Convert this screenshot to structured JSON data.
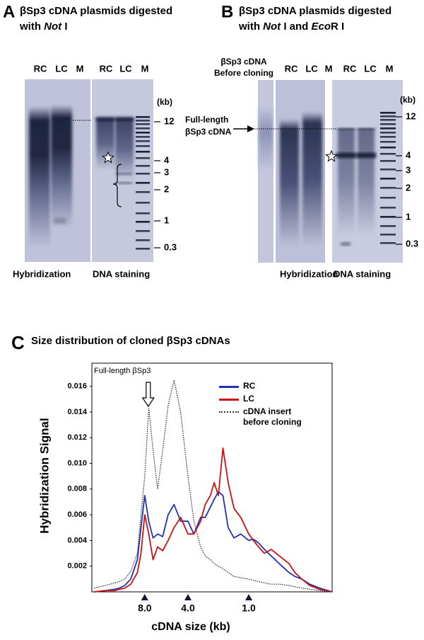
{
  "panel_a": {
    "letter": "A",
    "title_line1": "βSp3 cDNA plasmids digested",
    "title_line2": [
      "with ",
      "Not",
      " I"
    ],
    "lanes": [
      "RC",
      "LC",
      "M",
      "RC",
      "LC",
      "M"
    ],
    "size_unit": "(kb)",
    "sizes": [
      12,
      4,
      3,
      2,
      1,
      0.3
    ],
    "footer": [
      "Hybridization",
      "DNA staining"
    ]
  },
  "panel_b": {
    "letter": "B",
    "title_line1": "βSp3 cDNA plasmids digested",
    "title_line2": [
      "with ",
      "Not",
      " I and ",
      "Eco",
      "R I"
    ],
    "sample_label": [
      "βSp3 cDNA",
      "Before cloning"
    ],
    "arrow_label": [
      "Full-length",
      "βSp3 cDNA"
    ],
    "lanes": [
      "RC",
      "LC",
      "M",
      "RC",
      "LC",
      "M"
    ],
    "size_unit": "(kb)",
    "sizes": [
      12,
      4,
      3,
      2,
      1,
      0.3
    ],
    "footer": [
      "Hybridization",
      "DNA staining"
    ]
  },
  "chart_data": {
    "type": "line",
    "panel_label": "C",
    "title": "Size distribution of cloned βSp3 cDNAs",
    "x_label": "cDNA size (kb)",
    "y_label": "Hybridization Signal",
    "annotation": "Full-length βSp3",
    "x": [
      18,
      15,
      13,
      12,
      11,
      10,
      9,
      8.5,
      8,
      7.5,
      7,
      6.5,
      6,
      5.5,
      5,
      4.5,
      4,
      3.5,
      3,
      2.7,
      2.4,
      2.2,
      2,
      1.8,
      1.6,
      1.4,
      1.2,
      1,
      0.9,
      0.8,
      0.7,
      0.6,
      0.5,
      0.4,
      0.35,
      0.3,
      0.25,
      0.2,
      0.15
    ],
    "xlim": [
      18.7,
      0.15
    ],
    "xticks": [
      {
        "value": 8,
        "label": "8.0"
      },
      {
        "value": 4,
        "label": "4.0"
      },
      {
        "value": 1,
        "label": "1.0"
      }
    ],
    "ylim": [
      0,
      0.0178
    ],
    "yticks": [
      0.002,
      0.004,
      0.006,
      0.008,
      {
        "value": 0.01,
        "label": "0.010"
      },
      0.012,
      0.014,
      0.016
    ],
    "legend": "upper right",
    "series": [
      {
        "name": "RC",
        "color": "#2233bb",
        "line_style": "solid",
        "values": [
          0,
          0.0001,
          0.0002,
          0.0003,
          0.0005,
          0.001,
          0.0025,
          0.005,
          0.0075,
          0.0055,
          0.0042,
          0.0045,
          0.0043,
          0.006,
          0.0068,
          0.0055,
          0.0055,
          0.0045,
          0.0058,
          0.0058,
          0.0066,
          0.0072,
          0.0078,
          0.0075,
          0.005,
          0.0042,
          0.0045,
          0.004,
          0.0041,
          0.0038,
          0.0033,
          0.0028,
          0.0022,
          0.0015,
          0.0012,
          0.001,
          0.0006,
          0.0003,
          0
        ]
      },
      {
        "name": "LC",
        "color": "#cc1111",
        "line_style": "solid",
        "values": [
          0,
          0.0001,
          0.0001,
          0.0002,
          0.0003,
          0.0006,
          0.0015,
          0.003,
          0.006,
          0.0045,
          0.0025,
          0.0035,
          0.0032,
          0.004,
          0.005,
          0.0058,
          0.0045,
          0.0045,
          0.0055,
          0.0068,
          0.0075,
          0.0085,
          0.0075,
          0.0112,
          0.0085,
          0.0065,
          0.0058,
          0.0045,
          0.004,
          0.0035,
          0.003,
          0.0033,
          0.0028,
          0.0022,
          0.0015,
          0.001,
          0.0005,
          0.0002,
          0
        ]
      },
      {
        "name": "cDNA insert before cloning",
        "color": "#333333",
        "line_style": "dotted",
        "values": [
          0.0003,
          0.0005,
          0.0007,
          0.0008,
          0.001,
          0.0016,
          0.003,
          0.006,
          0.009,
          0.0143,
          0.011,
          0.008,
          0.011,
          0.0145,
          0.0165,
          0.014,
          0.009,
          0.0055,
          0.0035,
          0.0028,
          0.0025,
          0.0022,
          0.002,
          0.0018,
          0.0015,
          0.0012,
          0.0011,
          0.001,
          0.0009,
          0.0008,
          0.0007,
          0.0006,
          0.0006,
          0.0005,
          0.0004,
          0.0003,
          0.0002,
          0.0001,
          0
        ]
      }
    ]
  }
}
